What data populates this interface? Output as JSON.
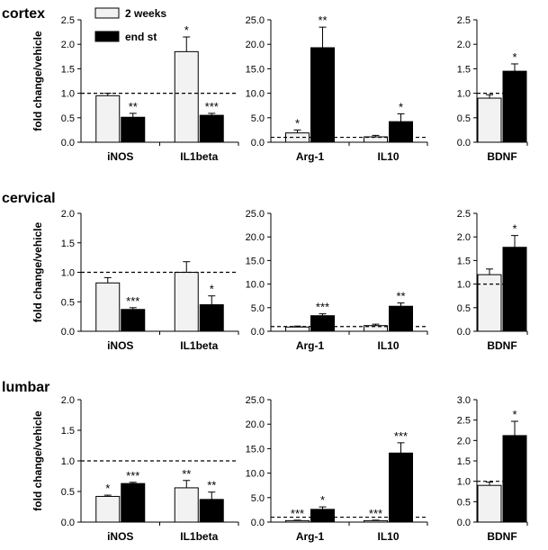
{
  "legend": [
    {
      "label": "2 weeks",
      "color": "#f2f2f2"
    },
    {
      "label": "end st",
      "color": "#000000"
    }
  ],
  "ylabel": "fold change/vehicle",
  "chart_data": [
    {
      "type": "bar",
      "section": "cortex",
      "panel": "left",
      "ylabel": "fold change/vehicle",
      "ylim": [
        0,
        2.5
      ],
      "ticks": [
        "0.0",
        "0.5",
        "1.0",
        "1.5",
        "2.0",
        "2.5"
      ],
      "reference": 1.0,
      "categories": [
        "iNOS",
        "IL1beta"
      ],
      "series": [
        {
          "name": "2 weeks",
          "values": [
            0.95,
            1.85
          ],
          "errors": [
            0.05,
            0.3
          ],
          "stars": [
            "",
            "*"
          ]
        },
        {
          "name": "end st",
          "values": [
            0.51,
            0.55
          ],
          "errors": [
            0.08,
            0.04
          ],
          "stars": [
            "**",
            "***"
          ]
        }
      ]
    },
    {
      "type": "bar",
      "section": "cortex",
      "panel": "middle",
      "ylim": [
        0,
        25
      ],
      "ticks": [
        "0.0",
        "5.0",
        "10.0",
        "15.0",
        "20.0",
        "25.0"
      ],
      "reference": 1.0,
      "categories": [
        "Arg-1",
        "IL10"
      ],
      "series": [
        {
          "name": "2 weeks",
          "values": [
            1.9,
            1.1
          ],
          "errors": [
            0.6,
            0.3
          ],
          "stars": [
            "*",
            ""
          ]
        },
        {
          "name": "end st",
          "values": [
            19.3,
            4.2
          ],
          "errors": [
            4.2,
            1.6
          ],
          "stars": [
            "**",
            "*"
          ]
        }
      ]
    },
    {
      "type": "bar",
      "section": "cortex",
      "panel": "right",
      "ylim": [
        0,
        2.5
      ],
      "ticks": [
        "0.0",
        "0.5",
        "1.0",
        "1.5",
        "2.0",
        "2.5"
      ],
      "reference": 1.0,
      "categories": [
        "BDNF"
      ],
      "series": [
        {
          "name": "2 weeks",
          "values": [
            0.9
          ],
          "errors": [
            0.07
          ],
          "stars": [
            ""
          ]
        },
        {
          "name": "end st",
          "values": [
            1.45
          ],
          "errors": [
            0.15
          ],
          "stars": [
            "*"
          ]
        }
      ]
    },
    {
      "type": "bar",
      "section": "cervical",
      "panel": "left",
      "ylabel": "fold change/vehicle",
      "ylim": [
        0,
        2.0
      ],
      "ticks": [
        "0.0",
        "0.5",
        "1.0",
        "1.5",
        "2.0"
      ],
      "reference": 1.0,
      "categories": [
        "iNOS",
        "IL1beta"
      ],
      "series": [
        {
          "name": "2 weeks",
          "values": [
            0.82,
            1.0
          ],
          "errors": [
            0.09,
            0.18
          ],
          "stars": [
            "",
            ""
          ]
        },
        {
          "name": "end st",
          "values": [
            0.37,
            0.45
          ],
          "errors": [
            0.03,
            0.15
          ],
          "stars": [
            "***",
            "*"
          ]
        }
      ]
    },
    {
      "type": "bar",
      "section": "cervical",
      "panel": "middle",
      "ylim": [
        0,
        25
      ],
      "ticks": [
        "0.0",
        "5.0",
        "10.0",
        "15.0",
        "20.0",
        "25.0"
      ],
      "reference": 1.0,
      "categories": [
        "Arg-1",
        "IL10"
      ],
      "series": [
        {
          "name": "2 weeks",
          "values": [
            0.9,
            1.2
          ],
          "errors": [
            0.2,
            0.3
          ],
          "stars": [
            "",
            ""
          ]
        },
        {
          "name": "end st",
          "values": [
            3.3,
            5.3
          ],
          "errors": [
            0.4,
            0.7
          ],
          "stars": [
            "***",
            "**"
          ]
        }
      ]
    },
    {
      "type": "bar",
      "section": "cervical",
      "panel": "right",
      "ylim": [
        0,
        2.5
      ],
      "ticks": [
        "0.0",
        "0.5",
        "1.0",
        "1.5",
        "2.0",
        "2.5"
      ],
      "reference": 1.0,
      "categories": [
        "BDNF"
      ],
      "series": [
        {
          "name": "2 weeks",
          "values": [
            1.2
          ],
          "errors": [
            0.12
          ],
          "stars": [
            ""
          ]
        },
        {
          "name": "end st",
          "values": [
            1.78
          ],
          "errors": [
            0.25
          ],
          "stars": [
            "*"
          ]
        }
      ]
    },
    {
      "type": "bar",
      "section": "lumbar",
      "panel": "left",
      "ylabel": "fold change/vehicle",
      "ylim": [
        0,
        2.0
      ],
      "ticks": [
        "0.0",
        "0.5",
        "1.0",
        "1.5",
        "2.0"
      ],
      "reference": 1.0,
      "categories": [
        "iNOS",
        "IL1beta"
      ],
      "series": [
        {
          "name": "2 weeks",
          "values": [
            0.42,
            0.56
          ],
          "errors": [
            0.02,
            0.12
          ],
          "stars": [
            "*",
            "**"
          ]
        },
        {
          "name": "end st",
          "values": [
            0.63,
            0.37
          ],
          "errors": [
            0.02,
            0.12
          ],
          "stars": [
            "***",
            "**"
          ]
        }
      ]
    },
    {
      "type": "bar",
      "section": "lumbar",
      "panel": "middle",
      "ylim": [
        0,
        25
      ],
      "ticks": [
        "0.0",
        "5.0",
        "10.0",
        "15.0",
        "20.0",
        "25.0"
      ],
      "reference": 1.0,
      "categories": [
        "Arg-1",
        "IL10"
      ],
      "series": [
        {
          "name": "2 weeks",
          "values": [
            0.3,
            0.3
          ],
          "errors": [
            0.1,
            0.1
          ],
          "stars": [
            "***",
            "***"
          ]
        },
        {
          "name": "end st",
          "values": [
            2.6,
            14.1
          ],
          "errors": [
            0.5,
            2.1
          ],
          "stars": [
            "*",
            "***"
          ]
        }
      ]
    },
    {
      "type": "bar",
      "section": "lumbar",
      "panel": "right",
      "ylim": [
        0,
        3.0
      ],
      "ticks": [
        "0.0",
        "0.5",
        "1.0",
        "1.5",
        "2.0",
        "2.5",
        "3.0"
      ],
      "reference": 1.0,
      "categories": [
        "BDNF"
      ],
      "series": [
        {
          "name": "2 weeks",
          "values": [
            0.9
          ],
          "errors": [
            0.08
          ],
          "stars": [
            ""
          ]
        },
        {
          "name": "end st",
          "values": [
            2.12
          ],
          "errors": [
            0.35
          ],
          "stars": [
            "*"
          ]
        }
      ]
    }
  ]
}
